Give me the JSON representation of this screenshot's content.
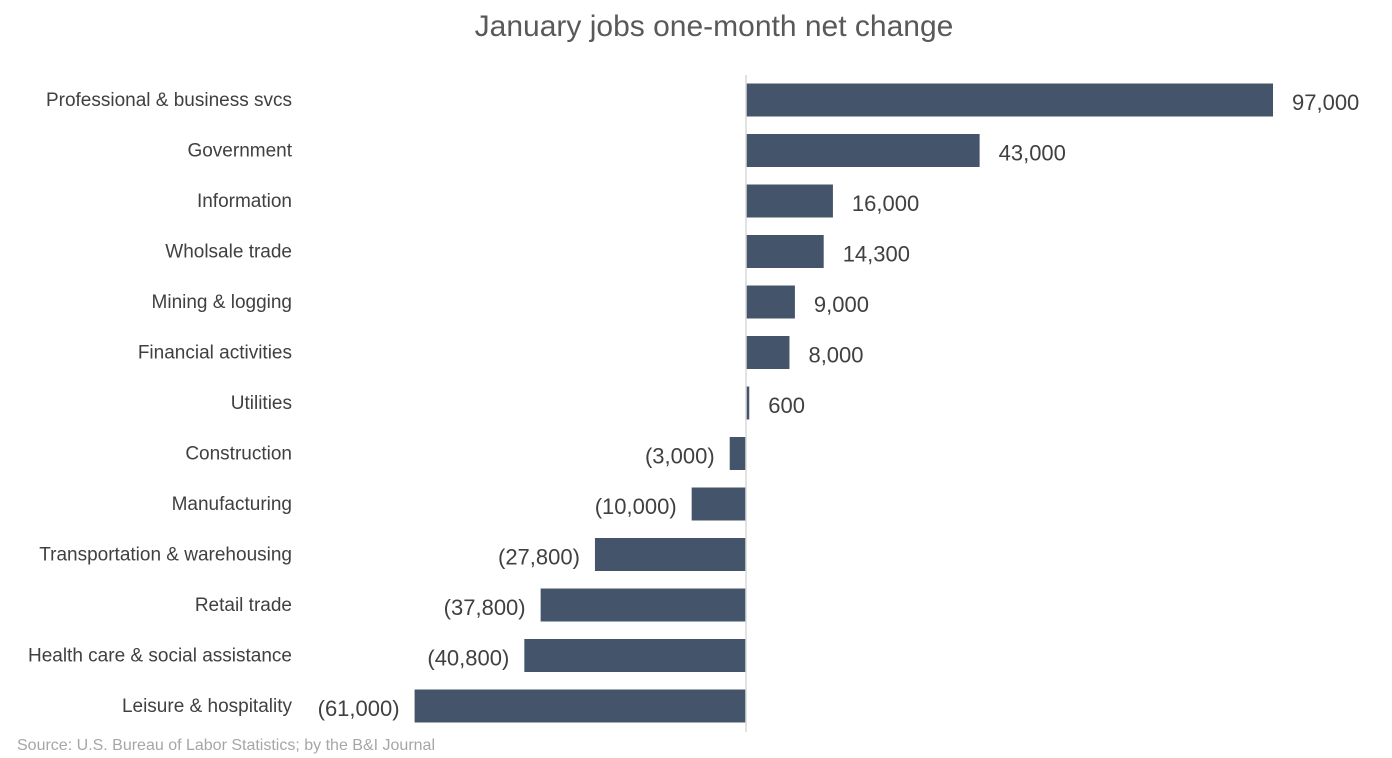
{
  "chart_data": {
    "type": "bar",
    "orientation": "horizontal",
    "title": "January jobs one-month net change",
    "categories": [
      "Professional & business svcs",
      "Government",
      "Information",
      "Wholsale trade",
      "Mining & logging",
      "Financial activities",
      "Utilities",
      "Construction",
      "Manufacturing",
      "Transportation & warehousing",
      "Retail trade",
      "Health care & social assistance",
      "Leisure & hospitality"
    ],
    "values": [
      97000,
      43000,
      16000,
      14300,
      9000,
      8000,
      600,
      -3000,
      -10000,
      -27800,
      -37800,
      -40800,
      -61000
    ],
    "data_labels": [
      "97,000",
      "43,000",
      "16,000",
      "14,300",
      "9,000",
      "8,000",
      "600",
      "(3,000)",
      "(10,000)",
      "(27,800)",
      "(37,800)",
      "(40,800)",
      "(61,000)"
    ],
    "xlabel": "",
    "ylabel": "",
    "xlim": [
      -61000,
      97000
    ],
    "bar_color": "#44546a",
    "axis_color": "#d9d9d9",
    "grid": false,
    "legend": "none"
  },
  "source": "Source: U.S. Bureau of Labor Statistics; by the B&I Journal"
}
